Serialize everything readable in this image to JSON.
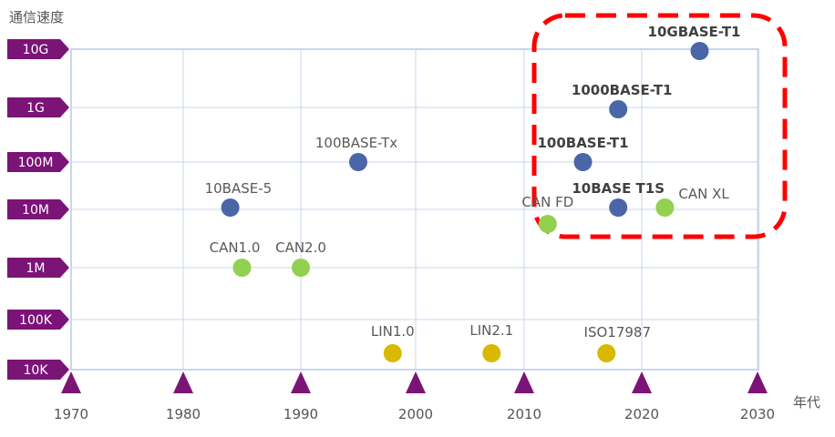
{
  "chart_data": {
    "type": "scatter",
    "title": "",
    "ylabel": "通信速度",
    "xlabel": "年代",
    "x_ticks": [
      1970,
      1980,
      1990,
      2000,
      2010,
      2020,
      2030
    ],
    "y_ticks": [
      "10K",
      "100K",
      "1M",
      "10M",
      "100M",
      "1G",
      "10G"
    ],
    "xlim": [
      1970,
      2030
    ],
    "grid": true,
    "series": [
      {
        "color": "#4a66a8",
        "points": [
          {
            "label": "10BASE-5",
            "x": 1984,
            "y": "10M",
            "bold": false
          },
          {
            "label": "100BASE-Tx",
            "x": 1995,
            "y": "100M",
            "bold": false
          },
          {
            "label": "100BASE-T1",
            "x": 2015,
            "y": "100M",
            "bold": true
          },
          {
            "label": "10BASE T1S",
            "x": 2018,
            "y": "10M",
            "bold": true
          },
          {
            "label": "1000BASE-T1",
            "x": 2018,
            "y": "1G",
            "bold": true
          },
          {
            "label": "10GBASE-T1",
            "x": 2025,
            "y": "10G",
            "bold": true
          }
        ]
      },
      {
        "color": "#92d050",
        "points": [
          {
            "label": "CAN1.0",
            "x": 1985,
            "y": "1M",
            "bold": false
          },
          {
            "label": "CAN2.0",
            "x": 1990,
            "y": "1M",
            "bold": false
          },
          {
            "label": "CAN FD",
            "x": 2012,
            "y": "10M",
            "bold": false
          },
          {
            "label": "CAN XL",
            "x": 2022,
            "y": "10M",
            "bold": false
          }
        ]
      },
      {
        "color": "#d9b800",
        "points": [
          {
            "label": "LIN1.0",
            "x": 1998,
            "y": "10K",
            "bold": false
          },
          {
            "label": "LIN2.1",
            "x": 2007,
            "y": "10K",
            "bold": false
          },
          {
            "label": "ISO17987",
            "x": 2017,
            "y": "10K",
            "bold": false
          }
        ]
      }
    ],
    "highlight": {
      "shape": "dashed rounded rectangle",
      "color": "#ff0000",
      "around": "newest Ethernet standards"
    },
    "colors": {
      "axis_marker": "#7b1477",
      "grid": "#c9d6ee"
    }
  }
}
